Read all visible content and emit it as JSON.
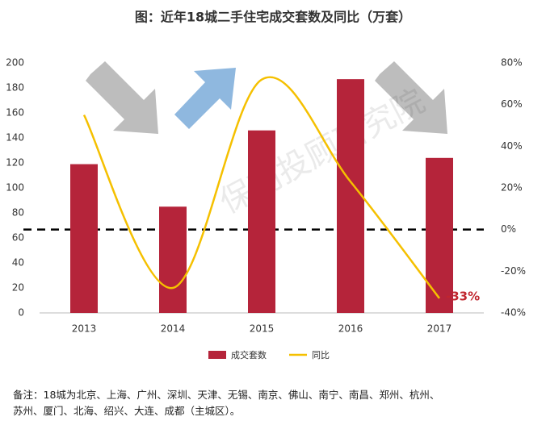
{
  "chart_data": {
    "type": "bar",
    "title": "图：近年18城二手住宅成交套数及同比（万套）",
    "watermark": "保利投顾研究院",
    "categories": [
      "2013",
      "2014",
      "2015",
      "2016",
      "2017"
    ],
    "series": [
      {
        "name": "成交套数",
        "type": "bar",
        "color": "#b5243a",
        "values": [
          119,
          85,
          146,
          187,
          124
        ]
      },
      {
        "name": "同比",
        "type": "line",
        "color": "#f5c000",
        "axis": "y2",
        "values": [
          55,
          -28,
          72,
          23,
          -33
        ],
        "value_labels": [
          null,
          null,
          null,
          null,
          "-33%"
        ]
      }
    ],
    "ylim": [
      0,
      200
    ],
    "yticks": [
      0,
      20,
      40,
      60,
      80,
      100,
      120,
      140,
      160,
      180,
      200
    ],
    "y2lim": [
      -40,
      80
    ],
    "y2ticks": [
      {
        "value": -40,
        "label": "-40%"
      },
      {
        "value": -20,
        "label": "-20%"
      },
      {
        "value": 0,
        "label": "0%"
      },
      {
        "value": 20,
        "label": "20%"
      },
      {
        "value": 40,
        "label": "40%"
      },
      {
        "value": 60,
        "label": "60%"
      },
      {
        "value": 80,
        "label": "80%"
      }
    ],
    "reference_line": {
      "axis": "y2",
      "value": 0
    },
    "grid": false,
    "footnote": [
      "备注：18城为北京、上海、广州、深圳、天津、无锡、南京、佛山、南宁、南昌、郑州、杭州、",
      "苏州、厦门、北海、绍兴、大连、成都（主城区）。"
    ]
  }
}
